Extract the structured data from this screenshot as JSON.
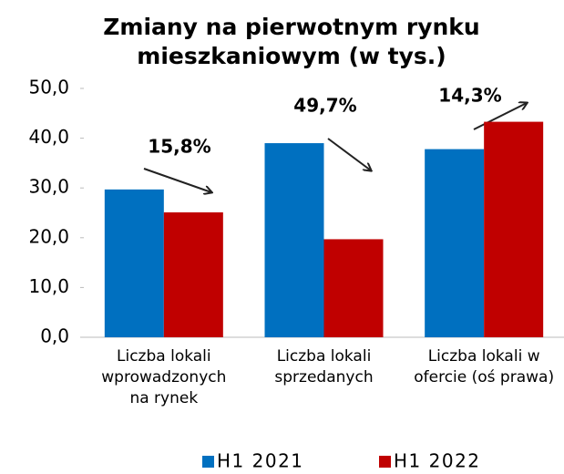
{
  "chart_data": {
    "type": "bar",
    "title": "Zmiany na pierwotnym rynku mieszkaniowym (w tys.)",
    "categories": [
      "Liczba lokali wprowadzonych na rynek",
      "Liczba lokali sprzedanych",
      "Liczba lokali w ofercie (oś prawa)"
    ],
    "series": [
      {
        "name": "H1 2021",
        "color": "#0070c0",
        "values": [
          29.7,
          39.0,
          37.8
        ]
      },
      {
        "name": "H1 2022",
        "color": "#c00000",
        "values": [
          25.1,
          19.7,
          43.3
        ]
      }
    ],
    "annotations": [
      "15,8%",
      "49,7%",
      "14,3%"
    ],
    "ylim": [
      0,
      50
    ],
    "yticks": [
      {
        "value": 0,
        "label": "0,0"
      },
      {
        "value": 10,
        "label": "10,0"
      },
      {
        "value": 20,
        "label": "20,0"
      },
      {
        "value": 30,
        "label": "30,0"
      },
      {
        "value": 40,
        "label": "40,0"
      },
      {
        "value": 50,
        "label": "50,0"
      }
    ],
    "legend": "bottom",
    "grid": false
  }
}
